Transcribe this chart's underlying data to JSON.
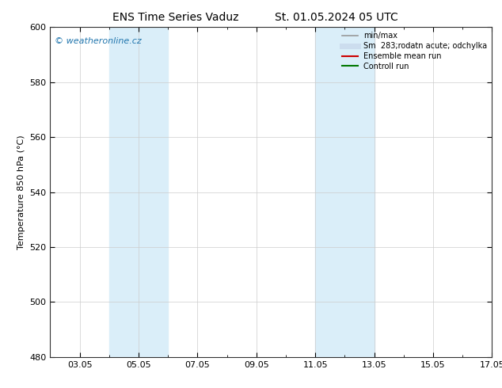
{
  "title_left": "ENS Time Series Vaduz",
  "title_right": "St. 01.05.2024 05 UTC",
  "ylabel": "Temperature 850 hPa (°C)",
  "ylim": [
    480,
    600
  ],
  "yticks": [
    480,
    500,
    520,
    540,
    560,
    580,
    600
  ],
  "xlim": [
    0,
    15
  ],
  "xtick_labels": [
    "03.05",
    "05.05",
    "07.05",
    "09.05",
    "11.05",
    "13.05",
    "15.05",
    "17.05"
  ],
  "xtick_positions": [
    1,
    3,
    5,
    7,
    9,
    11,
    13,
    15
  ],
  "shaded_regions": [
    {
      "x_start": 2.0,
      "x_end": 4.0,
      "color": "#daeef9"
    },
    {
      "x_start": 9.0,
      "x_end": 11.0,
      "color": "#daeef9"
    }
  ],
  "watermark_text": "© weatheronline.cz",
  "watermark_color": "#2176ae",
  "legend_label_sm": "Sm  283;rodatn acute; odchylka",
  "legend_entries": [
    {
      "label": "min/max",
      "color": "#999999",
      "lw": 1.2,
      "style": "line"
    },
    {
      "label": "283;rodatn acute; odchylka",
      "color": "#ccddee",
      "lw": 5,
      "style": "line"
    },
    {
      "label": "Ensemble mean run",
      "color": "#cc0000",
      "lw": 1.5,
      "style": "line"
    },
    {
      "label": "Controll run",
      "color": "#007700",
      "lw": 1.5,
      "style": "line"
    }
  ],
  "bg_color": "#ffffff",
  "plot_bg_color": "#ffffff",
  "grid_color": "#cccccc",
  "tick_label_fontsize": 8,
  "axis_label_fontsize": 8,
  "title_fontsize": 10
}
